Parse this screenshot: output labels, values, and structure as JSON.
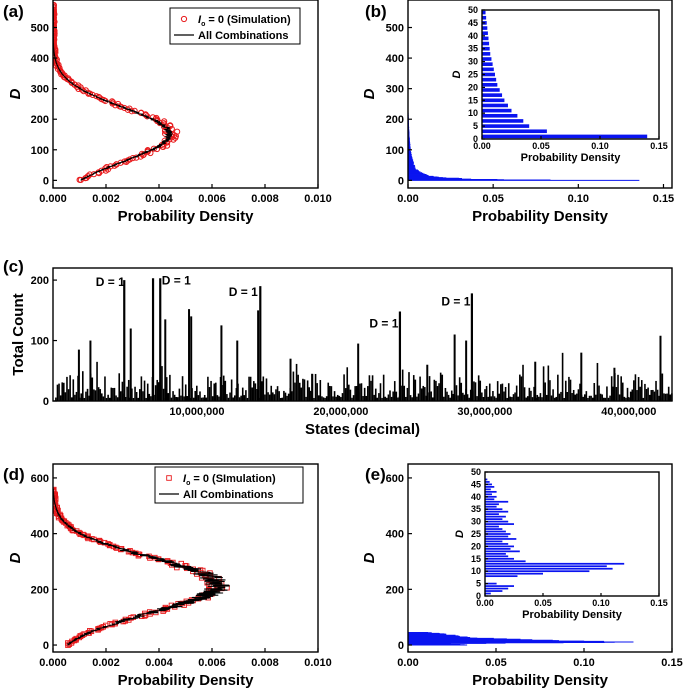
{
  "chart_data": [
    {
      "panel": "(a)",
      "type": "scatter",
      "xlabel": "Probability Density",
      "ylabel": "D",
      "xlim": [
        0,
        0.01
      ],
      "ylim": [
        -25,
        590
      ],
      "xticks": [
        "0.000",
        "0.002",
        "0.004",
        "0.006",
        "0.008",
        "0.010"
      ],
      "yticks": [
        "0",
        "100",
        "200",
        "300",
        "400",
        "500"
      ],
      "legend": [
        "I_o = 0 (Simulation)",
        "All Combinations"
      ],
      "series": [
        {
          "name": "I_o = 0 (Simulation)",
          "style": "red-circles",
          "gauss": {
            "peak": 0.0045,
            "center": 150,
            "sigma": 88
          },
          "y_range": [
            0,
            575
          ]
        },
        {
          "name": "All Combinations",
          "style": "black-line",
          "gauss": {
            "peak": 0.0044,
            "center": 150,
            "sigma": 88
          },
          "y_range": [
            0,
            575
          ]
        }
      ]
    },
    {
      "panel": "(b)",
      "type": "bar",
      "orientation": "horizontal",
      "xlabel": "Probability Density",
      "ylabel": "D",
      "xlim": [
        0,
        0.155
      ],
      "ylim": [
        -25,
        590
      ],
      "xticks": [
        "0.00",
        "0.05",
        "0.10",
        "0.15"
      ],
      "yticks": [
        "0",
        "100",
        "200",
        "300",
        "400",
        "500"
      ],
      "series": [
        {
          "name": "Probability Density",
          "y": [
            0,
            2,
            4,
            6,
            8,
            10,
            15,
            20,
            30,
            40,
            60,
            80,
            100,
            130,
            160,
            200,
            240
          ],
          "values": [
            0.14,
            0.055,
            0.04,
            0.03,
            0.022,
            0.017,
            0.012,
            0.009,
            0.006,
            0.004,
            0.003,
            0.002,
            0.0015,
            0.001,
            0.0007,
            0.0004,
            0.0002
          ]
        }
      ],
      "inset": {
        "type": "bar",
        "orientation": "horizontal",
        "xlabel": "Probability Density",
        "ylabel": "D",
        "xlim": [
          0,
          0.15
        ],
        "ylim": [
          0,
          50
        ],
        "xticks": [
          "0.00",
          "0.05",
          "0.10",
          "0.15"
        ],
        "yticks": [
          "0",
          "5",
          "10",
          "15",
          "20",
          "25",
          "30",
          "35",
          "40",
          "45",
          "50"
        ],
        "y": [
          1,
          3,
          5,
          7,
          9,
          11,
          13,
          15,
          17,
          19,
          21,
          23,
          25,
          27,
          29,
          31,
          33,
          35,
          37,
          39,
          41,
          43,
          45,
          47,
          49
        ],
        "values": [
          0.14,
          0.055,
          0.04,
          0.035,
          0.03,
          0.025,
          0.022,
          0.019,
          0.017,
          0.015,
          0.013,
          0.012,
          0.011,
          0.01,
          0.009,
          0.008,
          0.007,
          0.0065,
          0.006,
          0.0055,
          0.005,
          0.0045,
          0.004,
          0.0035,
          0.003
        ]
      }
    },
    {
      "panel": "(c)",
      "type": "bar",
      "xlabel": "States (decimal)",
      "ylabel": "Total Count",
      "xlim": [
        0,
        43000000
      ],
      "ylim": [
        0,
        220
      ],
      "xticks": [
        "10,000,000",
        "20,000,000",
        "30,000,000",
        "40,000,000"
      ],
      "yticks": [
        "0",
        "100",
        "200"
      ],
      "peaks": [
        {
          "x": 4950000,
          "count": 200,
          "label": "D = 1"
        },
        {
          "x": 6950000,
          "count": 203,
          "label": ""
        },
        {
          "x": 7450000,
          "count": 203,
          "label": "D = 1"
        },
        {
          "x": 14400000,
          "count": 190,
          "label": "D = 1"
        },
        {
          "x": 24100000,
          "count": 148,
          "label": "D = 1"
        },
        {
          "x": 29100000,
          "count": 178,
          "label": "D = 1"
        }
      ],
      "secondary_peaks": [
        {
          "x": 1800000,
          "count": 85
        },
        {
          "x": 2600000,
          "count": 100
        },
        {
          "x": 5400000,
          "count": 120
        },
        {
          "x": 7800000,
          "count": 135
        },
        {
          "x": 9450000,
          "count": 152
        },
        {
          "x": 9600000,
          "count": 140
        },
        {
          "x": 11700000,
          "count": 125
        },
        {
          "x": 12800000,
          "count": 100
        },
        {
          "x": 14250000,
          "count": 150
        },
        {
          "x": 16500000,
          "count": 70
        },
        {
          "x": 18000000,
          "count": 45
        },
        {
          "x": 21200000,
          "count": 95
        },
        {
          "x": 26000000,
          "count": 60
        },
        {
          "x": 27900000,
          "count": 110
        },
        {
          "x": 28700000,
          "count": 100
        },
        {
          "x": 33500000,
          "count": 65
        },
        {
          "x": 36700000,
          "count": 80
        },
        {
          "x": 39000000,
          "count": 55
        },
        {
          "x": 42200000,
          "count": 108
        }
      ],
      "baseline_count_range": [
        0,
        45
      ]
    },
    {
      "panel": "(d)",
      "type": "scatter",
      "xlabel": "Probability Density",
      "ylabel": "D",
      "xlim": [
        0,
        0.01
      ],
      "ylim": [
        -25,
        650
      ],
      "xticks": [
        "0.000",
        "0.002",
        "0.004",
        "0.006",
        "0.008",
        "0.010"
      ],
      "yticks": [
        "0",
        "200",
        "400",
        "600"
      ],
      "legend": [
        "I_o = 0 (SImulation)",
        "All Combinations"
      ],
      "series": [
        {
          "name": "I_o = 0 (SImulation)",
          "style": "red-squares",
          "gauss": {
            "peak": 0.0062,
            "center": 215,
            "sigma": 98
          },
          "y_range": [
            0,
            560
          ]
        },
        {
          "name": "All Combinations",
          "style": "black-line",
          "gauss": {
            "peak": 0.0062,
            "center": 215,
            "sigma": 98
          },
          "y_range": [
            0,
            560
          ]
        }
      ]
    },
    {
      "panel": "(e)",
      "type": "bar",
      "orientation": "horizontal",
      "xlabel": "Probability Density",
      "ylabel": "D",
      "xlim": [
        0,
        0.15
      ],
      "ylim": [
        -25,
        650
      ],
      "xticks": [
        "0.00",
        "0.05",
        "0.10",
        "0.15"
      ],
      "yticks": [
        "0",
        "200",
        "400",
        "600"
      ],
      "series": [
        {
          "name": "Probability Density",
          "y": [
            0,
            5,
            10,
            15,
            20,
            25,
            30,
            35,
            40,
            45
          ],
          "values": [
            0.03,
            0.02,
            0.12,
            0.09,
            0.06,
            0.04,
            0.03,
            0.025,
            0.018,
            0.012
          ]
        }
      ],
      "inset": {
        "type": "bar",
        "orientation": "horizontal",
        "xlabel": "Probability Density",
        "ylabel": "D",
        "xlim": [
          0,
          0.15
        ],
        "ylim": [
          0,
          50
        ],
        "xticks": [
          "0.00",
          "0.05",
          "0.10",
          "0.15"
        ],
        "yticks": [
          "0",
          "5",
          "10",
          "15",
          "20",
          "25",
          "30",
          "35",
          "40",
          "45",
          "50"
        ],
        "y": [
          1,
          2,
          3,
          4,
          5,
          8,
          9,
          10,
          11,
          12,
          13,
          14,
          15,
          16,
          17,
          18,
          19,
          20,
          21,
          22,
          23,
          24,
          25,
          26,
          27,
          28,
          29,
          30,
          31,
          32,
          33,
          34,
          35,
          36,
          37,
          38,
          39,
          40,
          41,
          42,
          43,
          44,
          45,
          46,
          47
        ],
        "values": [
          0.005,
          0.015,
          0.02,
          0.025,
          0.01,
          0.028,
          0.05,
          0.09,
          0.11,
          0.105,
          0.12,
          0.035,
          0.025,
          0.02,
          0.018,
          0.03,
          0.022,
          0.025,
          0.02,
          0.015,
          0.027,
          0.02,
          0.022,
          0.018,
          0.015,
          0.012,
          0.025,
          0.02,
          0.015,
          0.018,
          0.012,
          0.02,
          0.015,
          0.01,
          0.012,
          0.02,
          0.008,
          0.01,
          0.006,
          0.01,
          0.005,
          0.008,
          0.006,
          0.004,
          0.002
        ]
      }
    }
  ]
}
